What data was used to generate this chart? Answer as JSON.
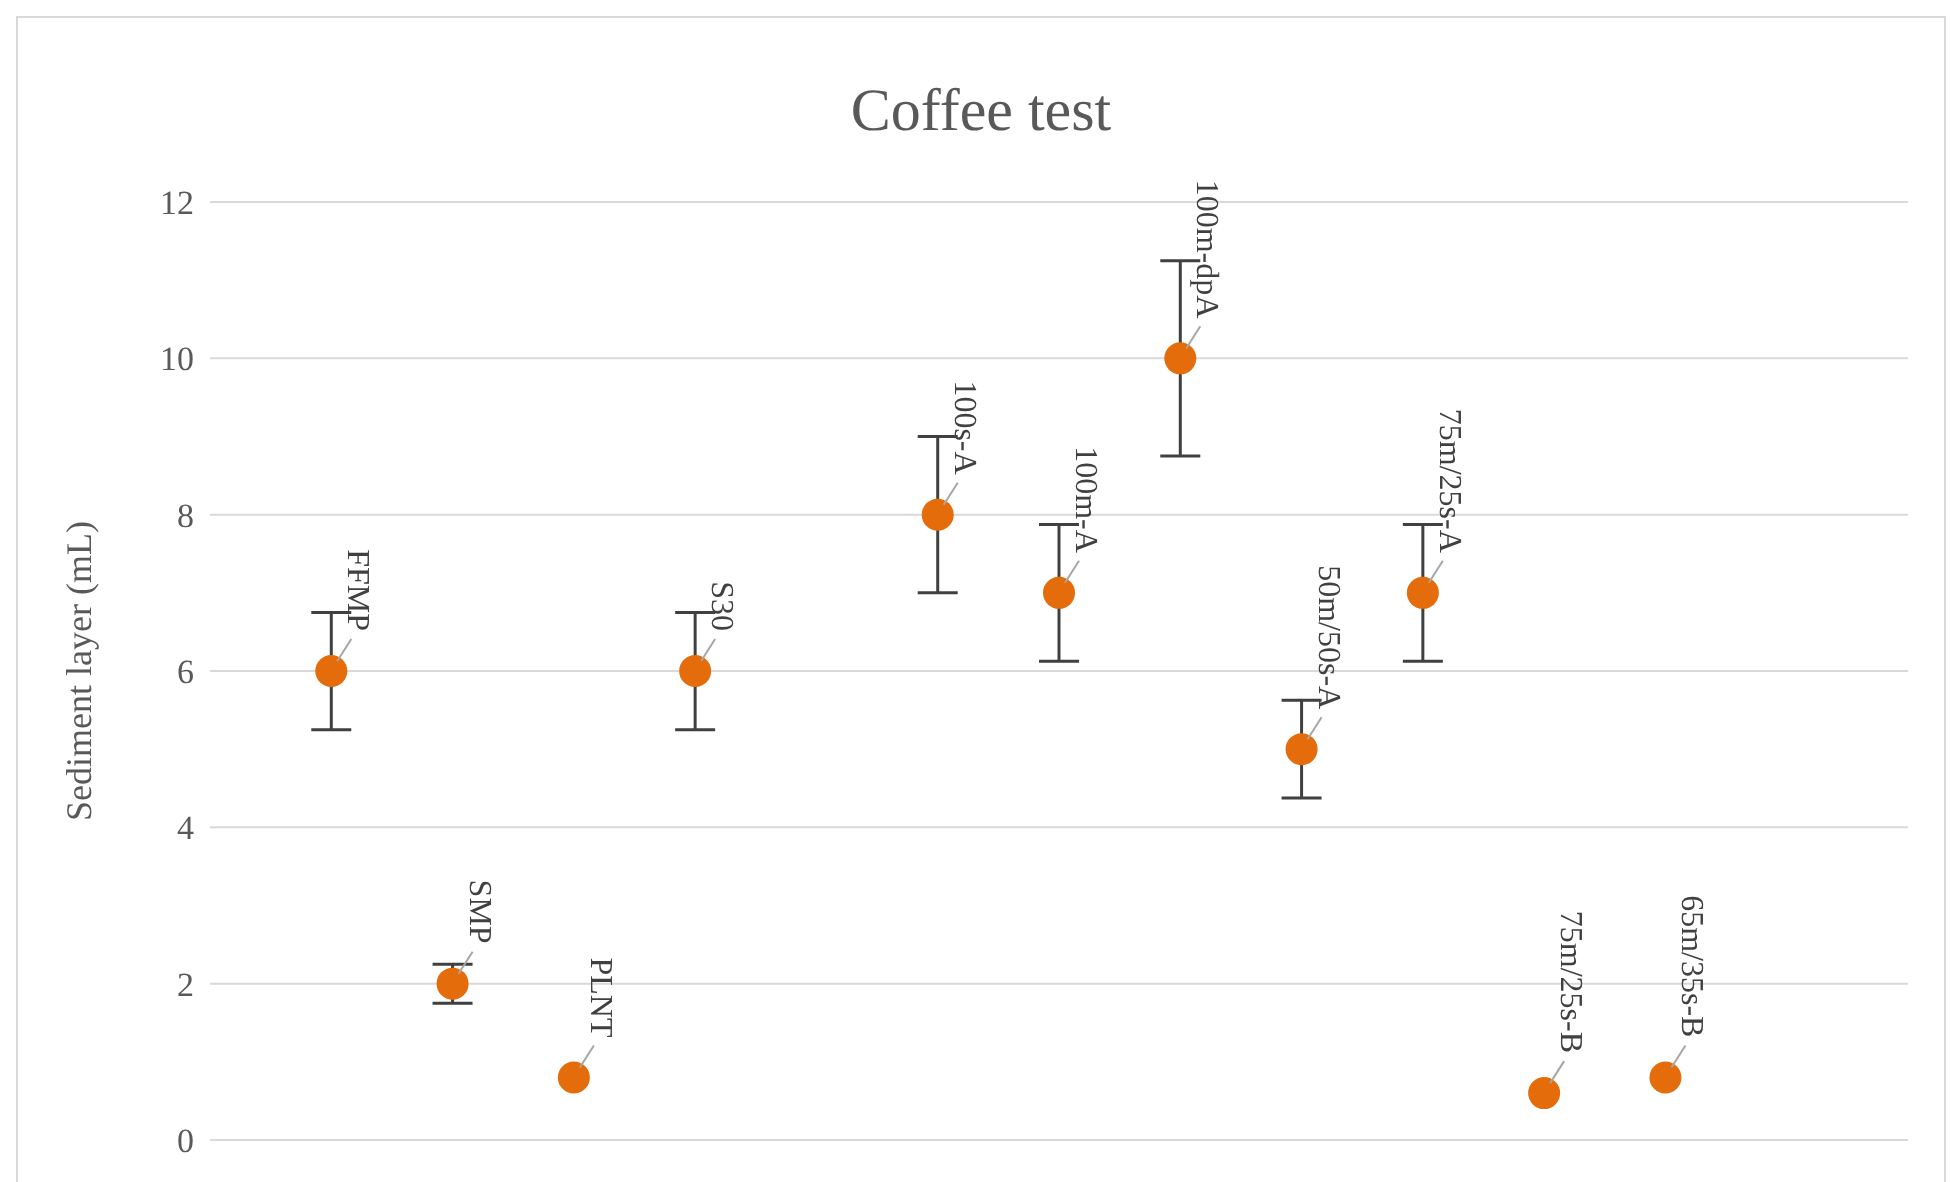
{
  "chart_data": {
    "type": "scatter",
    "title": "Coffee test",
    "ylabel": "Sediment layer (mL)",
    "categories": [
      "FFMP",
      "SMP",
      "PLNT",
      "S30",
      null,
      "100s-A",
      "100m-A",
      "100m-dpA",
      "50m/50s-A",
      "75m/25s-A",
      "75m/25s-B",
      "65m/35s-B"
    ],
    "values": [
      6,
      2,
      0.8,
      6,
      null,
      8,
      7,
      10,
      5,
      7,
      0.6,
      0.8
    ],
    "errors": [
      0.75,
      0.25,
      null,
      0.75,
      null,
      1,
      0.875,
      1.25,
      0.625,
      0.875,
      null,
      null
    ],
    "color": "#e46c0a",
    "ylim": [
      0,
      12
    ],
    "yticks": [
      0,
      2,
      4,
      6,
      8,
      10,
      12
    ],
    "grid": "y",
    "marker": "circle",
    "tick_labels": "y"
  }
}
